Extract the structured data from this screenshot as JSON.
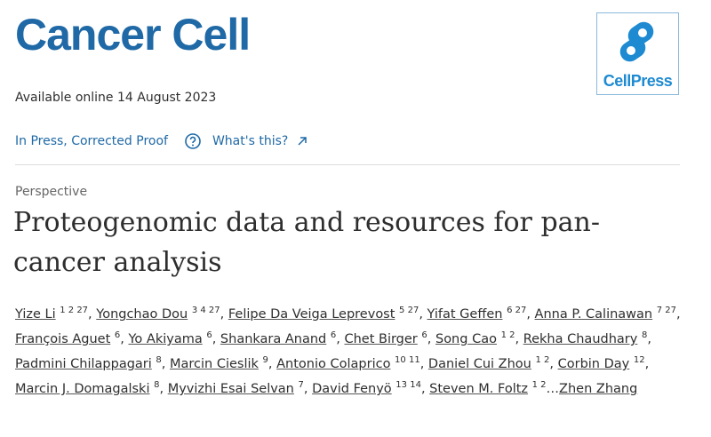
{
  "journal": {
    "title": "Cancer Cell",
    "logo_text": "CellPress"
  },
  "availability": "Available online 14 August 2023",
  "status": {
    "label": "In Press, Corrected Proof",
    "help_link": "What's this?"
  },
  "article": {
    "type": "Perspective",
    "title": "Proteogenomic data and resources for pan-cancer analysis"
  },
  "authors": {
    "separator": ",",
    "ellipsis": "…",
    "list": [
      {
        "name": "Yize Li",
        "affiliations": "1 2 27"
      },
      {
        "name": "Yongchao Dou",
        "affiliations": "3 4 27"
      },
      {
        "name": "Felipe Da Veiga Leprevost",
        "affiliations": "5 27"
      },
      {
        "name": "Yifat Geffen",
        "affiliations": "6 27"
      },
      {
        "name": "Anna P. Calinawan",
        "affiliations": "7 27"
      },
      {
        "name": "François Aguet",
        "affiliations": "6"
      },
      {
        "name": "Yo Akiyama",
        "affiliations": "6"
      },
      {
        "name": "Shankara Anand",
        "affiliations": "6"
      },
      {
        "name": "Chet Birger",
        "affiliations": "6"
      },
      {
        "name": "Song Cao",
        "affiliations": "1 2"
      },
      {
        "name": "Rekha Chaudhary",
        "affiliations": "8"
      },
      {
        "name": "Padmini Chilappagari",
        "affiliations": "8"
      },
      {
        "name": "Marcin Cieslik",
        "affiliations": "9"
      },
      {
        "name": "Antonio Colaprico",
        "affiliations": "10 11"
      },
      {
        "name": "Daniel Cui Zhou",
        "affiliations": "1 2"
      },
      {
        "name": "Corbin Day",
        "affiliations": "12"
      },
      {
        "name": "Marcin J. Domagalski",
        "affiliations": "8"
      },
      {
        "name": "Myvizhi Esai Selvan",
        "affiliations": "7"
      },
      {
        "name": "David Fenyö",
        "affiliations": "13 14"
      },
      {
        "name": "Steven M. Foltz",
        "affiliations": "1 2"
      }
    ],
    "last": "Zhen Zhang"
  }
}
